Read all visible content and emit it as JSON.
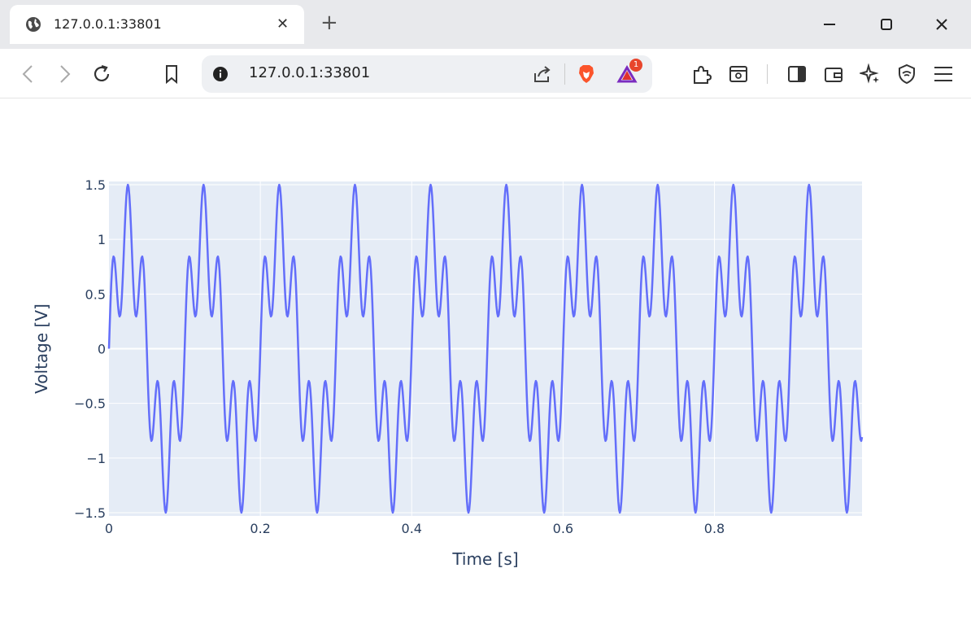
{
  "browser": {
    "tab_title": "127.0.0.1:33801",
    "url": "127.0.0.1:33801",
    "notification_count": "1"
  },
  "chart_data": {
    "type": "line",
    "xlabel": "Time [s]",
    "ylabel": "Voltage [V]",
    "xlim": [
      0,
      0.995
    ],
    "ylim": [
      -1.53,
      1.53
    ],
    "x_ticks": [
      0,
      0.2,
      0.4,
      0.6,
      0.8
    ],
    "x_tick_labels": [
      "0",
      "0.2",
      "0.4",
      "0.6",
      "0.8"
    ],
    "y_ticks": [
      -1.5,
      -1,
      -0.5,
      0,
      0.5,
      1,
      1.5
    ],
    "y_tick_labels": [
      "−1.5",
      "−1",
      "−0.5",
      "0",
      "0.5",
      "1",
      "1.5"
    ],
    "grid": true,
    "series": [
      {
        "color": "#636efa",
        "signal": {
          "components": [
            {
              "amplitude": 1.0,
              "frequency_hz": 10
            },
            {
              "amplitude": 0.5,
              "frequency_hz": 50
            }
          ],
          "t_start": 0,
          "t_end": 0.995,
          "sample_step": 0.001
        }
      }
    ],
    "colors": {
      "plot_bg": "#e5ecf6",
      "grid": "#ffffff",
      "text": "#2a3f5f"
    }
  }
}
